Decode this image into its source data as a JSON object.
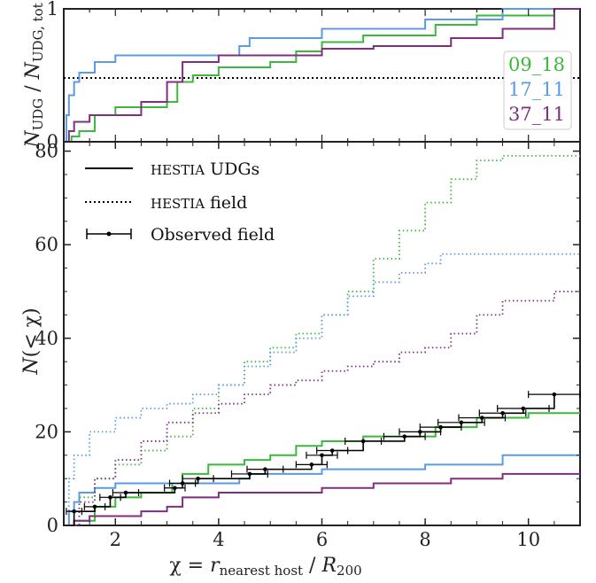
{
  "chart_data": [
    {
      "type": "line",
      "panel": "top",
      "ylabel": "N_UDG / N_UDG,tot",
      "yticks": [
        "0",
        "1"
      ],
      "xlim": [
        1,
        11
      ],
      "ylim": [
        0,
        1
      ],
      "step": true,
      "reference_line": {
        "y": 0.48,
        "style": "dotted",
        "color": "#000000"
      },
      "legend_box": [
        "09_18",
        "17_11",
        "37_11"
      ],
      "series": [
        {
          "name": "09_18",
          "color": "#3cb83c",
          "x": [
            1,
            1.15,
            1.3,
            1.6,
            2.0,
            3.0,
            3.2,
            3.5,
            4.0,
            5.0,
            5.5,
            6.0,
            6.8,
            8.2,
            9.0,
            10.5,
            11
          ],
          "y": [
            0,
            0.04,
            0.08,
            0.2,
            0.26,
            0.3,
            0.45,
            0.5,
            0.56,
            0.6,
            0.68,
            0.75,
            0.8,
            0.88,
            0.95,
            1.0,
            1.0
          ]
        },
        {
          "name": "17_11",
          "color": "#5b9be6",
          "x": [
            1,
            1.05,
            1.1,
            1.2,
            1.3,
            1.6,
            2.0,
            4.4,
            4.6,
            6.0,
            8.0,
            9.5,
            10.5,
            11
          ],
          "y": [
            0,
            0.2,
            0.35,
            0.45,
            0.52,
            0.6,
            0.65,
            0.72,
            0.78,
            0.85,
            0.92,
            1.0,
            1.0,
            1.0
          ]
        },
        {
          "name": "37_11",
          "color": "#7f2f7f",
          "x": [
            1,
            1.1,
            1.2,
            1.5,
            2.5,
            3.0,
            3.3,
            4.0,
            6.0,
            7.0,
            8.5,
            9.5,
            10.5,
            11
          ],
          "y": [
            0,
            0.08,
            0.15,
            0.2,
            0.3,
            0.45,
            0.6,
            0.65,
            0.7,
            0.72,
            0.78,
            0.85,
            1.0,
            1.0
          ]
        }
      ]
    },
    {
      "type": "line",
      "panel": "bottom",
      "xlabel": "χ = r_nearest host / R_200",
      "ylabel": "N(< χ)",
      "xticks": [
        "2",
        "4",
        "6",
        "8",
        "10"
      ],
      "yticks": [
        "0",
        "20",
        "40",
        "60",
        "80"
      ],
      "xlim": [
        1,
        11
      ],
      "ylim": [
        0,
        82
      ],
      "step": true,
      "legend": {
        "placement": "top-left",
        "entries": [
          {
            "label_sc": "HESTIA",
            "label": " UDGs",
            "style": "solid"
          },
          {
            "label_sc": "HESTIA",
            "label": " field",
            "style": "dotted"
          },
          {
            "label_sc": "",
            "label": "Observed field",
            "style": "errorbar"
          }
        ]
      },
      "series": [
        {
          "name": "09_18 UDGs",
          "color": "#3cb83c",
          "style": "solid",
          "x": [
            1,
            1.2,
            1.6,
            2.0,
            2.5,
            3.1,
            3.3,
            3.8,
            4.5,
            5.0,
            5.5,
            6.0,
            6.8,
            8.2,
            9.0,
            10.0,
            11
          ],
          "y": [
            0,
            1,
            4,
            6,
            7,
            9,
            11,
            13,
            14,
            15,
            17,
            18,
            19,
            21,
            23,
            24,
            24
          ]
        },
        {
          "name": "17_11 UDGs",
          "color": "#5b9be6",
          "style": "solid",
          "x": [
            1,
            1.1,
            1.2,
            1.3,
            1.6,
            2.0,
            4.4,
            4.6,
            6.0,
            8.0,
            9.5,
            11
          ],
          "y": [
            0,
            3,
            5,
            7,
            8,
            9,
            10,
            11,
            12,
            13,
            15,
            15
          ]
        },
        {
          "name": "37_11 UDGs",
          "color": "#7f2f7f",
          "style": "solid",
          "x": [
            1,
            1.2,
            1.5,
            2.5,
            3.0,
            3.3,
            4.0,
            6.0,
            7.0,
            8.5,
            9.5,
            10.5,
            11
          ],
          "y": [
            0,
            1,
            2,
            3,
            4,
            6,
            7,
            8,
            9,
            10,
            11,
            11,
            11
          ]
        },
        {
          "name": "09_18 field",
          "color": "#3cb83c",
          "style": "dotted",
          "x": [
            1,
            1.3,
            1.6,
            2.0,
            2.5,
            3.0,
            3.5,
            4.0,
            4.5,
            5.0,
            5.5,
            6.0,
            6.5,
            7.0,
            7.5,
            8.0,
            8.5,
            9.0,
            9.5,
            10.0,
            11
          ],
          "y": [
            0,
            6,
            10,
            13,
            16,
            19,
            25,
            30,
            35,
            38,
            41,
            45,
            50,
            57,
            63,
            69,
            74,
            78,
            79,
            79,
            79
          ]
        },
        {
          "name": "17_11 field",
          "color": "#5b9be6",
          "style": "dotted",
          "x": [
            1,
            1.1,
            1.2,
            1.5,
            2.0,
            2.5,
            3.0,
            3.5,
            4.0,
            4.5,
            5.0,
            5.5,
            6.0,
            6.5,
            7.0,
            7.5,
            8.0,
            8.3,
            11
          ],
          "y": [
            0,
            10,
            15,
            20,
            23,
            25,
            26,
            28,
            30,
            34,
            37,
            40,
            45,
            49,
            52,
            54,
            56,
            58,
            58
          ]
        },
        {
          "name": "37_11 field",
          "color": "#7f2f7f",
          "style": "dotted",
          "x": [
            1,
            1.3,
            1.6,
            2.0,
            2.5,
            3.0,
            3.5,
            4.0,
            4.5,
            5.0,
            5.5,
            6.0,
            6.5,
            7.0,
            7.5,
            8.0,
            8.5,
            9.0,
            9.5,
            10.5,
            11
          ],
          "y": [
            0,
            5,
            10,
            14,
            18,
            22,
            24,
            26,
            28,
            30,
            31,
            33,
            34,
            35,
            37,
            38,
            41,
            45,
            48,
            50,
            50
          ]
        },
        {
          "name": "Observed field",
          "color": "#000000",
          "style": "errorbar",
          "x": [
            1.2,
            1.6,
            1.9,
            2.2,
            3.15,
            3.3,
            3.6,
            4.6,
            4.9,
            5.8,
            6.0,
            6.2,
            6.8,
            7.6,
            7.9,
            8.3,
            8.7,
            9.1,
            9.5,
            9.9,
            10.5
          ],
          "y": [
            3,
            4,
            6,
            7,
            8,
            9,
            10,
            11,
            12,
            13,
            15,
            16,
            18,
            19,
            20,
            21,
            22,
            23,
            24,
            25,
            28
          ],
          "xerr": [
            0.15,
            0.2,
            0.2,
            0.25,
            0.2,
            0.25,
            0.3,
            0.35,
            0.35,
            0.3,
            0.3,
            0.3,
            0.35,
            0.4,
            0.4,
            0.4,
            0.45,
            0.45,
            0.45,
            0.5,
            0.5
          ]
        }
      ]
    }
  ]
}
